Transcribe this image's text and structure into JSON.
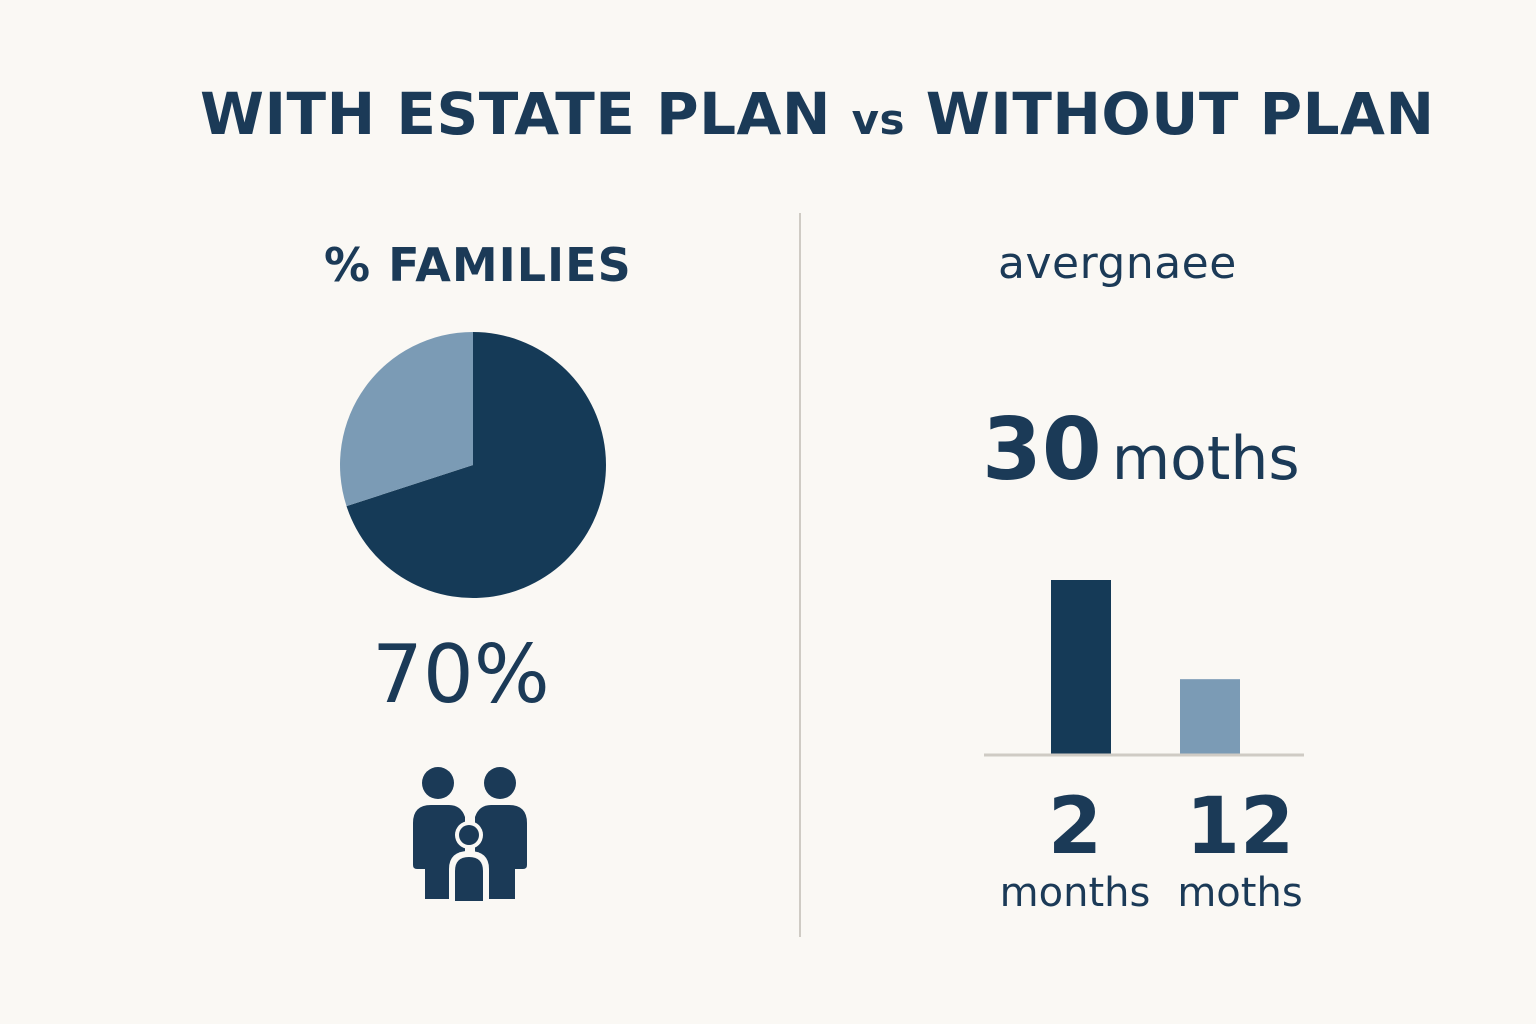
{
  "title_parts": [
    "WITH ESTATE PLAN",
    "vs",
    "WITHOUT PLAN"
  ],
  "colors": {
    "dark": "#153a57",
    "light": "#7b9bb5",
    "text": "#1b3a57",
    "axis": "#cfcbc4"
  },
  "icons": {
    "family": "family-icon"
  },
  "chart_data": [
    {
      "type": "pie",
      "title": "% FAMILIES",
      "slices": [
        {
          "value": 70,
          "color": "#153a57"
        },
        {
          "value": 30,
          "color": "#7b9bb5"
        }
      ],
      "value_label": "70%"
    },
    {
      "type": "bar",
      "title": "avergnaee",
      "headline_number": "30",
      "headline_unit": "moths",
      "categories": [
        "2 months",
        "12 moths"
      ],
      "values": [
        30,
        13
      ],
      "colors": [
        "#153a57",
        "#7b9bb5"
      ],
      "labels": [
        {
          "number": "2",
          "unit": "months"
        },
        {
          "number": "12",
          "unit": "moths"
        }
      ]
    }
  ]
}
